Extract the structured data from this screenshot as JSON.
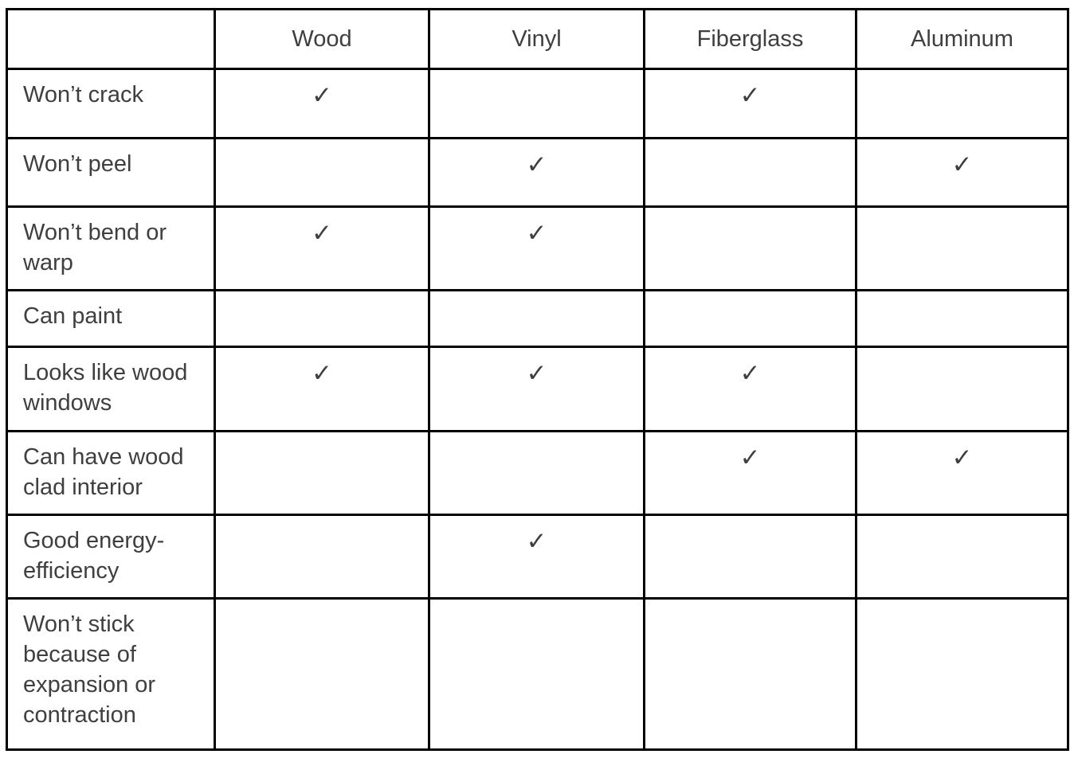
{
  "table": {
    "columns": [
      "",
      "Wood",
      "Vinyl",
      "Fiberglass",
      "Aluminum"
    ],
    "check_glyph": "✓",
    "rows": [
      {
        "label": "Won’t crack",
        "cells": [
          "✓",
          "",
          "✓",
          ""
        ]
      },
      {
        "label": "Won’t peel",
        "cells": [
          "",
          "✓",
          "",
          "✓"
        ]
      },
      {
        "label": "Won’t bend or warp",
        "cells": [
          "✓",
          "✓",
          "",
          ""
        ]
      },
      {
        "label": "Can paint",
        "cells": [
          "",
          "",
          "",
          ""
        ]
      },
      {
        "label": "Looks like wood windows",
        "cells": [
          "✓",
          "✓",
          "✓",
          ""
        ]
      },
      {
        "label": "Can have wood clad interior",
        "cells": [
          "",
          "",
          "✓",
          "✓"
        ]
      },
      {
        "label": "Good energy-efficiency",
        "cells": [
          "",
          "✓",
          "",
          ""
        ]
      },
      {
        "label": "Won’t stick because of expansion or contraction",
        "cells": [
          "",
          "",
          "",
          ""
        ]
      }
    ],
    "colors": {
      "border": "#000000",
      "text": "#3f3f3f",
      "background": "#ffffff"
    }
  }
}
